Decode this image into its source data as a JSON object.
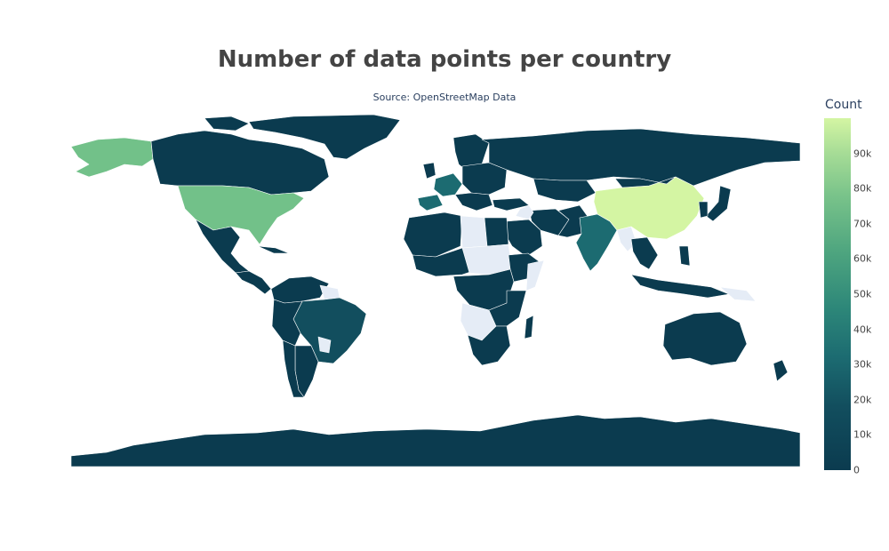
{
  "title": "Number of data points per country",
  "subtitle": "Source: OpenStreetMap Data",
  "colorbar": {
    "title": "Count",
    "ticks": [
      "0",
      "10k",
      "20k",
      "30k",
      "40k",
      "50k",
      "60k",
      "70k",
      "80k",
      "90k"
    ],
    "max": 100000
  },
  "colors": {
    "no_data": "#e5ecf6",
    "low": "#0b3b4f",
    "mid_low": "#1c6b71",
    "mid": "#4ea57f",
    "high": "#79c38a",
    "top": "#d4f5a3"
  }
}
